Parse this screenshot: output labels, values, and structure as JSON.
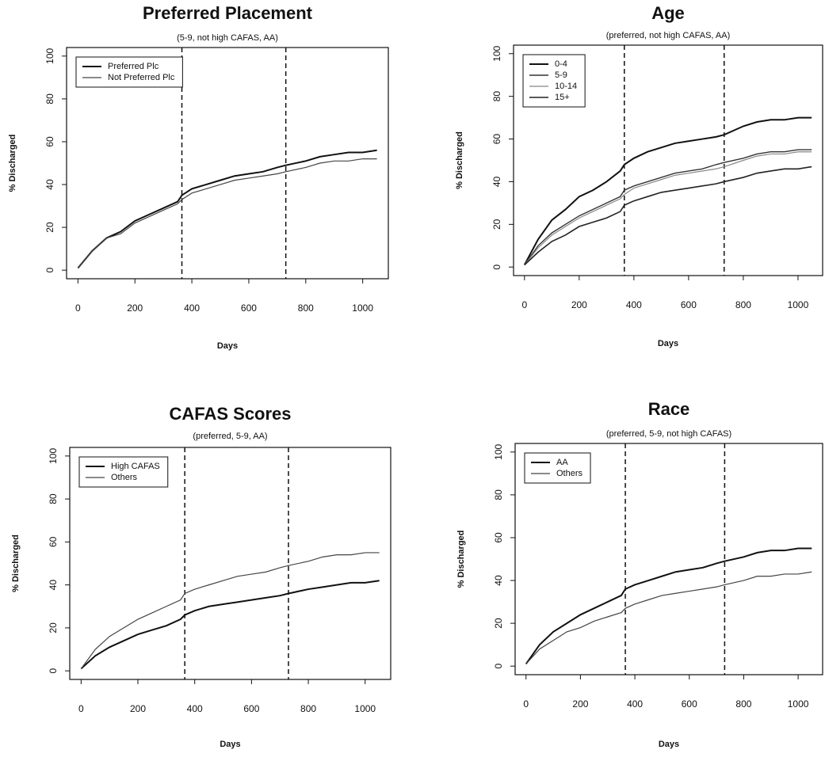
{
  "chart_data": [
    {
      "type": "line",
      "title": "Preferred Placement",
      "subtitle": "(5-9, not high CAFAS, AA)",
      "xlabel": "Days",
      "ylabel": "% Discharged",
      "x": [
        0,
        50,
        100,
        150,
        200,
        250,
        300,
        350,
        365,
        400,
        450,
        500,
        550,
        600,
        650,
        700,
        730,
        800,
        850,
        900,
        950,
        1000,
        1050
      ],
      "series": [
        {
          "name": "Preferred Plc",
          "color": "#111111",
          "width": 2,
          "values": [
            1,
            9,
            15,
            18,
            23,
            26,
            29,
            32,
            35,
            38,
            40,
            42,
            44,
            45,
            46,
            48,
            49,
            51,
            53,
            54,
            55,
            55,
            56
          ]
        },
        {
          "name": "Not Preferred Plc",
          "color": "#444444",
          "width": 1.2,
          "values": [
            1,
            9,
            15,
            17,
            22,
            25,
            28,
            31,
            33,
            36,
            38,
            40,
            42,
            43,
            44,
            45,
            46,
            48,
            50,
            51,
            51,
            52,
            52
          ]
        }
      ],
      "xlim": [
        -40,
        1090
      ],
      "ylim": [
        -4,
        104
      ],
      "xticks": [
        0,
        200,
        400,
        600,
        800,
        1000
      ],
      "yticks": [
        0,
        20,
        40,
        60,
        80,
        100
      ],
      "vlines": [
        365,
        730
      ],
      "legend": "top-left"
    },
    {
      "type": "line",
      "title": "Age",
      "subtitle": "(preferred, not high CAFAS, AA)",
      "xlabel": "Days",
      "ylabel": "% Discharged",
      "x": [
        0,
        50,
        100,
        150,
        200,
        250,
        300,
        350,
        365,
        400,
        450,
        500,
        550,
        600,
        650,
        700,
        730,
        800,
        850,
        900,
        950,
        1000,
        1050
      ],
      "series": [
        {
          "name": "0-4",
          "color": "#111111",
          "width": 2,
          "values": [
            1,
            13,
            22,
            27,
            33,
            36,
            40,
            45,
            48,
            51,
            54,
            56,
            58,
            59,
            60,
            61,
            62,
            66,
            68,
            69,
            69,
            70,
            70
          ]
        },
        {
          "name": "5-9",
          "color": "#333333",
          "width": 1.4,
          "values": [
            1,
            10,
            16,
            20,
            24,
            27,
            30,
            33,
            36,
            38,
            40,
            42,
            44,
            45,
            46,
            48,
            49,
            51,
            53,
            54,
            54,
            55,
            55
          ]
        },
        {
          "name": "10-14",
          "color": "#888888",
          "width": 1.2,
          "values": [
            1,
            9,
            15,
            19,
            23,
            26,
            29,
            32,
            34,
            37,
            39,
            41,
            43,
            44,
            45,
            46,
            47,
            50,
            52,
            53,
            53,
            54,
            54
          ]
        },
        {
          "name": "15+",
          "color": "#222222",
          "width": 1.6,
          "values": [
            1,
            7,
            12,
            15,
            19,
            21,
            23,
            26,
            29,
            31,
            33,
            35,
            36,
            37,
            38,
            39,
            40,
            42,
            44,
            45,
            46,
            46,
            47
          ]
        }
      ],
      "xlim": [
        -40,
        1090
      ],
      "ylim": [
        -4,
        104
      ],
      "xticks": [
        0,
        200,
        400,
        600,
        800,
        1000
      ],
      "yticks": [
        0,
        20,
        40,
        60,
        80,
        100
      ],
      "vlines": [
        365,
        730
      ],
      "legend": "top-left"
    },
    {
      "type": "line",
      "title": "CAFAS Scores",
      "subtitle": "(preferred, 5-9, AA)",
      "xlabel": "Days",
      "ylabel": "% Discharged",
      "x": [
        0,
        50,
        100,
        150,
        200,
        250,
        300,
        350,
        365,
        400,
        450,
        500,
        550,
        600,
        650,
        700,
        730,
        800,
        850,
        900,
        950,
        1000,
        1050
      ],
      "series": [
        {
          "name": "High CAFAS",
          "color": "#111111",
          "width": 2,
          "values": [
            1,
            7,
            11,
            14,
            17,
            19,
            21,
            24,
            26,
            28,
            30,
            31,
            32,
            33,
            34,
            35,
            36,
            38,
            39,
            40,
            41,
            41,
            42
          ]
        },
        {
          "name": "Others",
          "color": "#444444",
          "width": 1.2,
          "values": [
            1,
            10,
            16,
            20,
            24,
            27,
            30,
            33,
            36,
            38,
            40,
            42,
            44,
            45,
            46,
            48,
            49,
            51,
            53,
            54,
            54,
            55,
            55
          ]
        }
      ],
      "xlim": [
        -40,
        1090
      ],
      "ylim": [
        -4,
        104
      ],
      "xticks": [
        0,
        200,
        400,
        600,
        800,
        1000
      ],
      "yticks": [
        0,
        20,
        40,
        60,
        80,
        100
      ],
      "vlines": [
        365,
        730
      ],
      "legend": "top-left"
    },
    {
      "type": "line",
      "title": "Race",
      "subtitle": "(preferred, 5-9, not high CAFAS)",
      "xlabel": "Days",
      "ylabel": "% Discharged",
      "x": [
        0,
        50,
        100,
        150,
        200,
        250,
        300,
        350,
        365,
        400,
        450,
        500,
        550,
        600,
        650,
        700,
        730,
        800,
        850,
        900,
        950,
        1000,
        1050
      ],
      "series": [
        {
          "name": "AA",
          "color": "#111111",
          "width": 2,
          "values": [
            1,
            10,
            16,
            20,
            24,
            27,
            30,
            33,
            36,
            38,
            40,
            42,
            44,
            45,
            46,
            48,
            49,
            51,
            53,
            54,
            54,
            55,
            55
          ]
        },
        {
          "name": "Others",
          "color": "#444444",
          "width": 1.2,
          "values": [
            1,
            8,
            12,
            16,
            18,
            21,
            23,
            25,
            27,
            29,
            31,
            33,
            34,
            35,
            36,
            37,
            38,
            40,
            42,
            42,
            43,
            43,
            44
          ]
        }
      ],
      "xlim": [
        -40,
        1090
      ],
      "ylim": [
        -4,
        104
      ],
      "xticks": [
        0,
        200,
        400,
        600,
        800,
        1000
      ],
      "yticks": [
        0,
        20,
        40,
        60,
        80,
        100
      ],
      "vlines": [
        365,
        730
      ],
      "legend": "top-left"
    }
  ]
}
